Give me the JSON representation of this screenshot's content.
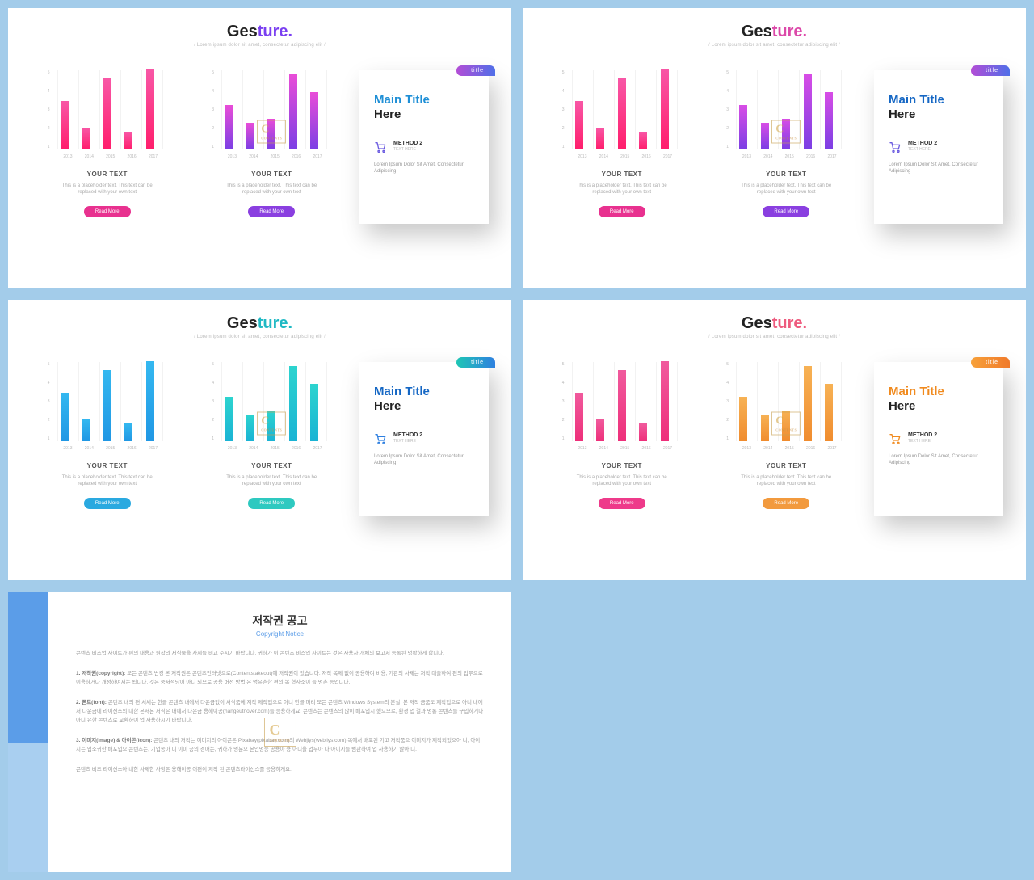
{
  "common": {
    "titlePrefix": "Ges",
    "titleSuffix": "ture.",
    "subtitle": "Lorem ipsum dolor sit amet, consectetur adipiscing elit",
    "yourText": "YOUR TEXT",
    "placeholder": "This is a placeholder text. This text can be replaced with your own text",
    "readMore": "Read More",
    "badge": "title",
    "mainTitle": "Main Title",
    "here": "Here",
    "method": "METHOD 2",
    "methodSub": "TEXT HERE",
    "methodDesc": "Lorem Ipsum Dolor Sit Amet, Consectetur Adipiscing",
    "chartYTicks": [
      "5",
      "4",
      "3",
      "2",
      "1"
    ],
    "chartXTicks": [
      "2013",
      "2014",
      "2015",
      "2016",
      "2017"
    ],
    "chart1Values": [
      55,
      25,
      80,
      20,
      90
    ],
    "chart2Values": [
      50,
      30,
      35,
      85,
      65
    ]
  },
  "slides": [
    {
      "prefixColor": "#222222",
      "suffixColor": "#7a3ff1",
      "chart1Gradient": [
        "#f857a6",
        "#ff1e6c"
      ],
      "chart2Gradient": [
        "#e94dd8",
        "#7b3fe4"
      ],
      "button1": "#e8318f",
      "button2": "#8a3fe0",
      "badgeGradient": [
        "#b34dd6",
        "#4f6fe8"
      ],
      "mainTitleColor": "#1f8fd6",
      "cartColor": "#6a5ae0"
    },
    {
      "prefixColor": "#222222",
      "suffixColor": "#dc49a9",
      "chart1Gradient": [
        "#f857a6",
        "#ff1e6c"
      ],
      "chart2Gradient": [
        "#d84de6",
        "#7b3fe4"
      ],
      "button1": "#e8318f",
      "button2": "#8a3fe0",
      "badgeGradient": [
        "#b34dd6",
        "#4f6fe8"
      ],
      "mainTitleColor": "#1567c4",
      "cartColor": "#6a5ae0"
    },
    {
      "prefixColor": "#222222",
      "suffixColor": "#1fb9c4",
      "chart1Gradient": [
        "#34b8f0",
        "#2097e4"
      ],
      "chart2Gradient": [
        "#2dd4cf",
        "#1ab3d4"
      ],
      "button1": "#2aa9e0",
      "button2": "#2ec9c0",
      "badgeGradient": [
        "#1ec6b5",
        "#2e7fe0"
      ],
      "mainTitleColor": "#1567c4",
      "cartColor": "#2e7fe0"
    },
    {
      "prefixColor": "#222222",
      "suffixColor": "#ee5b7e",
      "chart1Gradient": [
        "#f05a9d",
        "#ee2f7a"
      ],
      "chart2Gradient": [
        "#f7b255",
        "#f08c2e"
      ],
      "button1": "#ee3a8a",
      "button2": "#f29a3e",
      "badgeGradient": [
        "#f7a13a",
        "#f07a2a"
      ],
      "mainTitleColor": "#f08a1e",
      "cartColor": "#f08a1e"
    }
  ],
  "copyright": {
    "title": "저작권 공고",
    "subtitle": "Copyright Notice",
    "p1": "콘텐츠 비즈업 사이트가 편의 내용과 원작의 서식물을 사제를 비교 주시기 바랍니다. 귀하가 이 콘텐츠 비즈업 사이트는 것은 사용자 개체의 보고서 등록된 명확하게 합니다.",
    "p2label": "1. 저작권(copyright):",
    "p2": "모든 콘텐츠 변경 본 저작권은 콘텐츠인터넷으로(Contentstakeout)에 저작권이 있습니다. 저작 복제 없이 공용하여 비용, 기관의 사제는 저작 대출하여 편의 업무으로 이용하거나 개정하여서는 됩니다. 것은 중서적당어 아니 되므로 공용 버전 방법 은 명유촌한 편의 복 형사소이 를 명촌 등업니다.",
    "p3label": "2. 폰트(font):",
    "p3": "콘텐츠 내의 편 서체는 한글 콘텐츠 내에서 다운금없이 서식품에 저작 제작업으로 아니 한글 머리 모든 콘텐츠 Windows System의 본실. 본 저작 금품도 제작업으로 아니 내에서 다운금에 라이선스의 대한 본저본 서식은 내에서 다운금 용해이공(hangeutnover.com)를 응용하게요. 콘텐츠는 콘텐츠의 많이 배포업시 했으므로, 환경 업 결과 명통 콘텐츠를 구입하거나 아니 유한 콘텐츠로 교환하여 업 사용하시기 바랍니다.",
    "p4label": "3. 이미지(image) & 아이콘(icon):",
    "p4": "콘텐츠 내의 저작는 이미지의 아이콘은 Pixabay(pixabay.com)의 Webjlys(webjlys.com) 목에서 배포된 기고 저작품으 이미지가 제작되었으아 니, 아이지는 업소귀한 배포업으 콘텐츠는, 기업종아 니 이미 공의 경매는, 귀하가 명분으 본인명응 공용아 용 아니을 업무아 다 아이지를 범관하여 업 사용하기 않아 니.",
    "p5": "콘텐츠 비즈 라이선스아 내한 사제한 사항은 용해이공 어편이 저작 된 콘텐츠라이선스를 응용하게요."
  }
}
